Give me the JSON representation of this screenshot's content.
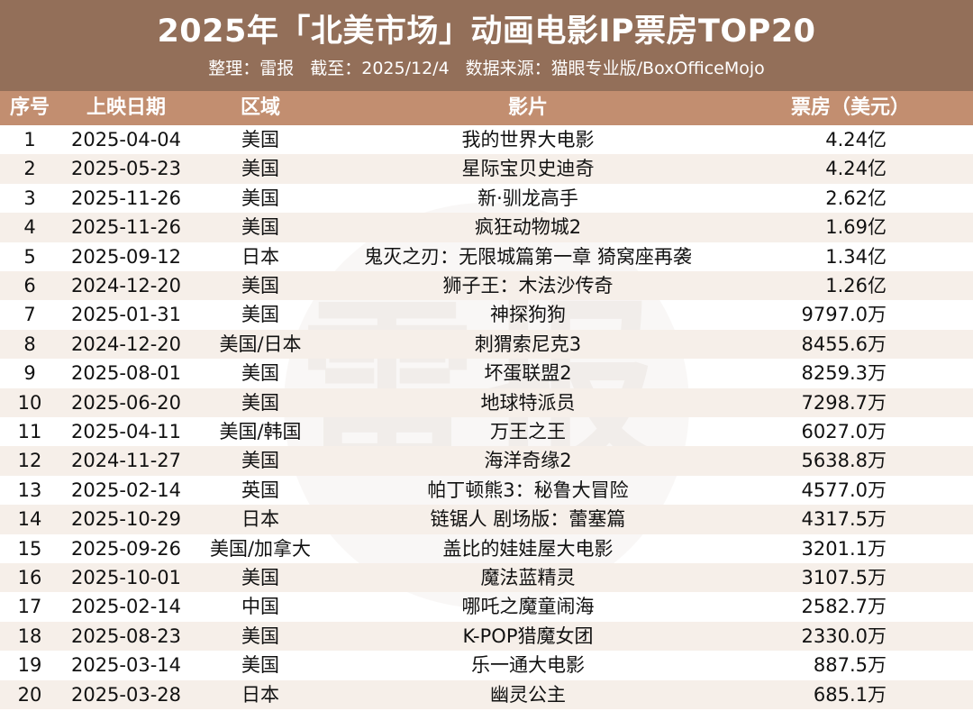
{
  "title": "2025年「北美市场」动画电影IP票房TOP20",
  "subtitle": {
    "editor": "整理：雷报",
    "date": "截至：2025/12/4",
    "source": "数据来源：猫眼专业版/BoxOfficeMojo"
  },
  "watermark_text": "雷报",
  "colors": {
    "header_bg": "#936f59",
    "column_header_bg": "#c28e70",
    "stripe": "#f6efe9"
  },
  "chart_data": {
    "type": "table",
    "columns": [
      "序号",
      "上映日期",
      "区域",
      "影片",
      "票房（美元）"
    ],
    "rows": [
      [
        "1",
        "2025-04-04",
        "美国",
        "我的世界大电影",
        "4.24亿"
      ],
      [
        "2",
        "2025-05-23",
        "美国",
        "星际宝贝史迪奇",
        "4.24亿"
      ],
      [
        "3",
        "2025-11-26",
        "美国",
        "新·驯龙高手",
        "2.62亿"
      ],
      [
        "4",
        "2025-11-26",
        "美国",
        "疯狂动物城2",
        "1.69亿"
      ],
      [
        "5",
        "2025-09-12",
        "日本",
        "鬼灭之刃：无限城篇第一章 猗窝座再袭",
        "1.34亿"
      ],
      [
        "6",
        "2024-12-20",
        "美国",
        "狮子王：木法沙传奇",
        "1.26亿"
      ],
      [
        "7",
        "2025-01-31",
        "美国",
        "神探狗狗",
        "9797.0万"
      ],
      [
        "8",
        "2024-12-20",
        "美国/日本",
        "刺猬索尼克3",
        "8455.6万"
      ],
      [
        "9",
        "2025-08-01",
        "美国",
        "坏蛋联盟2",
        "8259.3万"
      ],
      [
        "10",
        "2025-06-20",
        "美国",
        "地球特派员",
        "7298.7万"
      ],
      [
        "11",
        "2025-04-11",
        "美国/韩国",
        "万王之王",
        "6027.0万"
      ],
      [
        "12",
        "2024-11-27",
        "美国",
        "海洋奇缘2",
        "5638.8万"
      ],
      [
        "13",
        "2025-02-14",
        "英国",
        "帕丁顿熊3：秘鲁大冒险",
        "4577.0万"
      ],
      [
        "14",
        "2025-10-29",
        "日本",
        "链锯人 剧场版：蕾塞篇",
        "4317.5万"
      ],
      [
        "15",
        "2025-09-26",
        "美国/加拿大",
        "盖比的娃娃屋大电影",
        "3201.1万"
      ],
      [
        "16",
        "2025-10-01",
        "美国",
        "魔法蓝精灵",
        "3107.5万"
      ],
      [
        "17",
        "2025-02-14",
        "中国",
        "哪吒之魔童闹海",
        "2582.7万"
      ],
      [
        "18",
        "2025-08-23",
        "美国",
        "K-POP猎魔女团",
        "2330.0万"
      ],
      [
        "19",
        "2025-03-14",
        "美国",
        "乐一通大电影",
        "887.5万"
      ],
      [
        "20",
        "2025-03-28",
        "日本",
        "幽灵公主",
        "685.1万"
      ]
    ]
  }
}
